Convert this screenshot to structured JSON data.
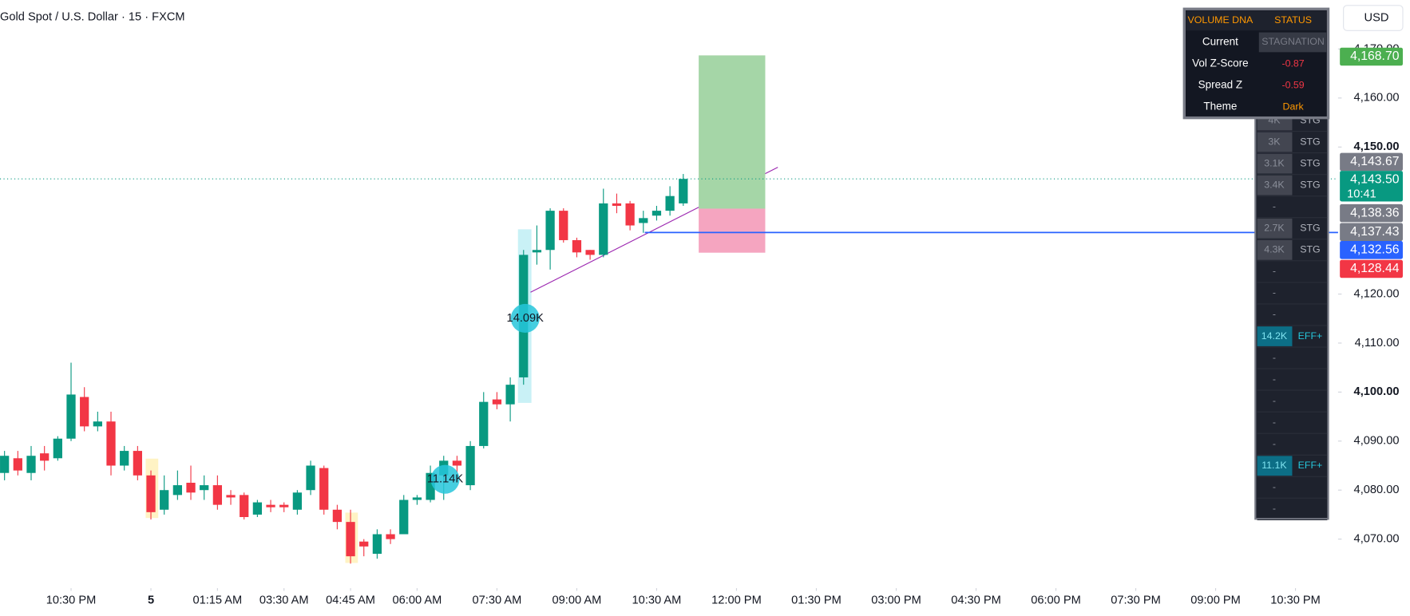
{
  "chart_data": {
    "type": "candlestick",
    "title": "Gold Spot / U.S. Dollar · 15 · FXCM",
    "up_color": "#089981",
    "down_color": "#f23645",
    "open": [
      4083.5,
      4086.5,
      4083.5,
      4087.5,
      4086.5,
      4090.5,
      4099,
      4093,
      4094,
      4085,
      4088,
      4083,
      4076,
      4079,
      4081.5,
      4080,
      4081,
      4079,
      4079,
      4075,
      4077,
      4077,
      4076,
      4080,
      4084.5,
      4076,
      4073.5,
      4069.5,
      4067,
      4071,
      4071,
      4078,
      4078,
      4083,
      4086,
      4081,
      4089,
      4098.5,
      4097.5,
      4103,
      4128.5,
      4129,
      4137,
      4131,
      4129,
      4128,
      4138.5,
      4138.5,
      4134.5,
      4136,
      4137,
      4138.5
    ],
    "high": [
      4088,
      4088,
      4089,
      4089,
      4091,
      4106,
      4101,
      4096,
      4096,
      4089,
      4089,
      4084,
      4083,
      4084,
      4085,
      4083,
      4083,
      4080,
      4079.5,
      4078,
      4078,
      4077.5,
      4080,
      4086,
      4085,
      4077,
      4076,
      4070,
      4072,
      4072,
      4079,
      4079,
      4085,
      4087,
      4087,
      4090,
      4100,
      4100,
      4103,
      4129,
      4134,
      4137.5,
      4137.5,
      4131.5,
      4129,
      4141.5,
      4140.5,
      4139,
      4137,
      4138,
      4142,
      4144.5
    ],
    "low": [
      4082,
      4083,
      4082,
      4084,
      4086,
      4090,
      4092,
      4092,
      4083,
      4084,
      4082,
      4074,
      4075,
      4078,
      4078,
      4078,
      4076,
      4077,
      4074,
      4074.5,
      4075.5,
      4075.5,
      4075,
      4079,
      4075,
      4072,
      4065,
      4066.5,
      4066,
      4069,
      4071,
      4077,
      4077.5,
      4078,
      4083.5,
      4080,
      4088.5,
      4096.5,
      4094,
      4101.5,
      4126,
      4125,
      4130.5,
      4127.5,
      4127,
      4127.5,
      4136.5,
      4133,
      4132.5,
      4135,
      4136,
      4138
    ],
    "close": [
      4087,
      4084,
      4087,
      4086,
      4090.5,
      4099.5,
      4093,
      4094,
      4085,
      4088,
      4083,
      4075.5,
      4080,
      4081,
      4079.5,
      4081,
      4077,
      4078.5,
      4074.5,
      4077.5,
      4076.5,
      4076.5,
      4079.5,
      4085,
      4076,
      4073.5,
      4066.5,
      4068.5,
      4071,
      4070,
      4078,
      4078.5,
      4083.5,
      4086,
      4085,
      4089,
      4098,
      4097.5,
      4101.5,
      4128,
      4129,
      4137,
      4131,
      4128.5,
      4128,
      4138.5,
      4138,
      4134,
      4135.5,
      4137,
      4140,
      4143.5
    ],
    "xlim": [
      -0.34,
      100.2
    ],
    "xticks": [
      {
        "value": 5,
        "label": "10:30 PM"
      },
      {
        "value": 11,
        "label": "5"
      },
      {
        "value": 16,
        "label": "01:15 AM"
      },
      {
        "value": 21,
        "label": "03:30 AM"
      },
      {
        "value": 26,
        "label": "04:45 AM"
      },
      {
        "value": 31,
        "label": "06:00 AM"
      },
      {
        "value": 37,
        "label": "07:30 AM"
      },
      {
        "value": 43,
        "label": "09:00 AM"
      },
      {
        "value": 49,
        "label": "10:30 AM"
      },
      {
        "value": 55,
        "label": "12:00 PM"
      },
      {
        "value": 61,
        "label": "01:30 PM"
      },
      {
        "value": 67,
        "label": "03:00 PM"
      },
      {
        "value": 73,
        "label": "04:30 PM"
      },
      {
        "value": 79,
        "label": "06:00 PM"
      },
      {
        "value": 85,
        "label": "07:30 PM"
      },
      {
        "value": 91,
        "label": "09:00 PM"
      },
      {
        "value": 97,
        "label": "10:30 PM"
      }
    ],
    "ylim": [
      4060,
      4180
    ],
    "yticks": [
      {
        "value": 4070,
        "label": "4,070.00"
      },
      {
        "value": 4080,
        "label": "4,080.00"
      },
      {
        "value": 4090,
        "label": "4,090.00"
      },
      {
        "value": 4100,
        "label": "4,100.00"
      },
      {
        "value": 4110,
        "label": "4,110.00"
      },
      {
        "value": 4120,
        "label": "4,120.00"
      },
      {
        "value": 4150,
        "label": "4,150.00"
      },
      {
        "value": 4160,
        "label": "4,160.00"
      },
      {
        "value": 4170,
        "label": "4,170.00"
      }
    ],
    "last_price": 4143.5,
    "alert_line": 4132.56,
    "position": {
      "target": 4168.7,
      "entry": 4137.43,
      "stop": 4128.44
    },
    "bubbles": [
      "14.09K",
      "11.14K"
    ],
    "price_tags": [
      {
        "label": "4,168.70",
        "color": "#4caf50"
      },
      {
        "label": "4,143.67",
        "color": "#787b86"
      },
      {
        "label": "4,143.50",
        "sub": "10:41",
        "color": "#089981"
      },
      {
        "label": "4,138.36",
        "color": "#787b86"
      },
      {
        "label": "4,137.43",
        "color": "#787b86"
      },
      {
        "label": "4,132.56",
        "color": "#2962ff"
      },
      {
        "label": "4,128.44",
        "color": "#f23645"
      }
    ]
  },
  "currency": "USD",
  "status_table": {
    "header": [
      "VOLUME DNA",
      "STATUS"
    ],
    "rows": [
      [
        "Current",
        "STAGNATION"
      ],
      [
        "Vol Z-Score",
        "-0.87"
      ],
      [
        "Spread Z",
        "-0.59"
      ],
      [
        "Theme",
        "Dark"
      ]
    ]
  },
  "volume_table": {
    "rows": [
      [
        "4K",
        "STG"
      ],
      [
        "3K",
        "STG"
      ],
      [
        "3.1K",
        "STG"
      ],
      [
        "3.4K",
        "STG"
      ],
      [
        "-"
      ],
      [
        "2.7K",
        "STG"
      ],
      [
        "4.3K",
        "STG"
      ],
      [
        "-"
      ],
      [
        "-"
      ],
      [
        "-"
      ],
      [
        "14.2K",
        "EFF+"
      ],
      [
        "-"
      ],
      [
        "-"
      ],
      [
        "-"
      ],
      [
        "-"
      ],
      [
        "-"
      ],
      [
        "11.1K",
        "EFF+"
      ],
      [
        "-"
      ],
      [
        "-"
      ]
    ]
  }
}
